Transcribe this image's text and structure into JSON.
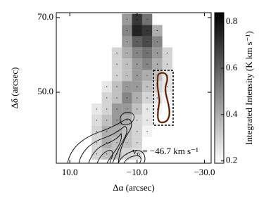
{
  "chart_data": {
    "type": "heatmap",
    "x_label": "Δα (arcsec)",
    "y_label": "Δδ (arcsec)",
    "colorbar_label": "Integrated Intensity (K km s⁻¹)",
    "annotation": "v₀ = −46.7 km s⁻¹",
    "x": [
      2,
      -1,
      -4,
      -7,
      -10,
      -13,
      -16,
      -19,
      -22
    ],
    "y": [
      69.5,
      66.5,
      63.5,
      60.5,
      57.5,
      54.5,
      51.5,
      48.5,
      45.5,
      42.5,
      39.5,
      36.5,
      33.5
    ],
    "z": [
      [
        null,
        null,
        null,
        0.45,
        0.7,
        0.55,
        null,
        null,
        null
      ],
      [
        null,
        null,
        null,
        0.5,
        0.75,
        0.7,
        0.4,
        null,
        null
      ],
      [
        null,
        null,
        null,
        0.45,
        0.6,
        0.65,
        0.5,
        null,
        null
      ],
      [
        null,
        null,
        0.3,
        0.4,
        0.5,
        0.55,
        0.45,
        0.3,
        null
      ],
      [
        null,
        null,
        0.3,
        0.35,
        0.45,
        0.5,
        0.4,
        0.3,
        null
      ],
      [
        null,
        null,
        0.3,
        0.35,
        0.45,
        0.4,
        0.35,
        0.25,
        null
      ],
      [
        null,
        0.25,
        0.35,
        0.45,
        0.45,
        0.35,
        0.3,
        0.25,
        null
      ],
      [
        null,
        0.3,
        0.35,
        0.5,
        0.4,
        0.3,
        0.25,
        0.22,
        null
      ],
      [
        0.25,
        0.3,
        0.45,
        0.45,
        0.35,
        0.25,
        0.22,
        null,
        null
      ],
      [
        0.28,
        0.35,
        0.45,
        0.4,
        0.3,
        0.25,
        null,
        null,
        null
      ],
      [
        0.3,
        0.4,
        0.4,
        0.35,
        0.3,
        0.22,
        null,
        null,
        null
      ],
      [
        0.3,
        0.4,
        0.35,
        0.35,
        0.3,
        null,
        null,
        null,
        null
      ],
      [
        0.3,
        0.35,
        0.35,
        0.3,
        0.28,
        null,
        null,
        null,
        null
      ]
    ],
    "xlim": [
      14,
      -32
    ],
    "ylim": [
      31,
      71.3
    ],
    "clim": [
      0.19,
      0.84
    ],
    "xticks": [
      {
        "value": 10,
        "label": "10.0"
      },
      {
        "value": -10,
        "label": "−10.0"
      },
      {
        "value": -30,
        "label": "−30.0"
      }
    ],
    "yticks": [
      {
        "value": 50,
        "label": "50.0"
      },
      {
        "value": 70,
        "label": "70.0"
      }
    ],
    "cticks": [
      0.2,
      0.4,
      0.6,
      0.8
    ]
  }
}
